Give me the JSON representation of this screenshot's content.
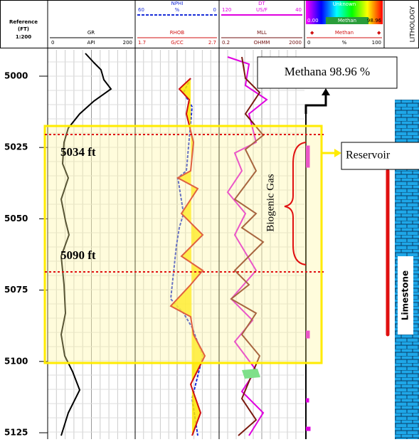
{
  "header": {
    "depth": {
      "reference": "Reference",
      "unit": "(FT)",
      "scale": "1:200"
    },
    "gr": {
      "name": "GR",
      "min": "0",
      "unit": "API",
      "max": "200"
    },
    "nphi": {
      "name": "NPHI",
      "min": "60",
      "unit": "%",
      "max": "0"
    },
    "rhob": {
      "name": "RHOB",
      "min": "1.7",
      "unit": "G/CC",
      "max": "2.7"
    },
    "dt": {
      "name": "DT",
      "min": "120",
      "unit": "US/F",
      "max": "40"
    },
    "mll": {
      "name": "MLL",
      "min": "0.2",
      "unit": "OHMM",
      "max": "2000"
    },
    "gas": {
      "legend_top": "Unknown",
      "legend_min": "0.00",
      "legend_name": "Methan",
      "legend_max": "98.96",
      "name": "Methan",
      "min": "0",
      "unit": "%",
      "max": "100"
    },
    "lithology": "LITHOLOGY"
  },
  "depth_ticks": [
    "5000",
    "5025",
    "5050",
    "5075",
    "5100",
    "5125"
  ],
  "annotations": {
    "methane": "Methana 98.96 %",
    "reservoir": "Reservoir",
    "top": "5034 ft",
    "bottom": "5090 ft",
    "gas_zone": "Biogenic Gas",
    "lithology": "Limestone"
  }
}
